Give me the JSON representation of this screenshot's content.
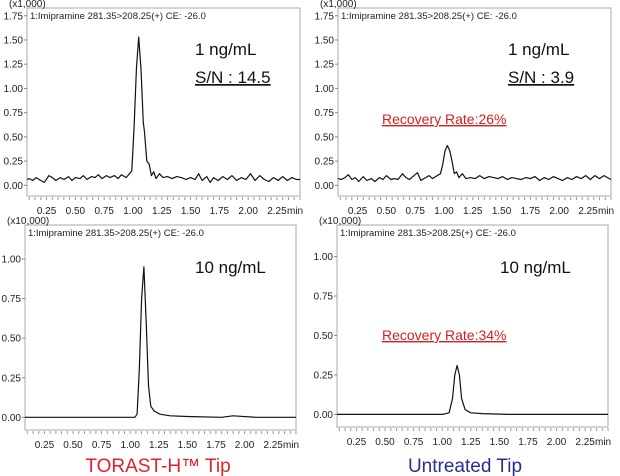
{
  "chart_data": [
    {
      "type": "line",
      "title": "1:Imipramine 281.35>208.25(+) CE: -26.0",
      "y_multiplier": "(x1,000)",
      "xlabel": "min",
      "xticks": [
        "0.25",
        "0.50",
        "0.75",
        "1.00",
        "1.25",
        "1.50",
        "1.75",
        "2.00",
        "2.25"
      ],
      "yticks": [
        "0.00",
        "0.25",
        "0.50",
        "0.75",
        "1.00",
        "1.25",
        "1.50",
        "1.75"
      ],
      "xlim": [
        0.08,
        2.45
      ],
      "ylim": [
        -0.11,
        1.83
      ],
      "annotations": {
        "concentration": "1 ng/mL",
        "sn": "S/N : 14.5"
      },
      "series": [
        {
          "name": "TORAST-H Tip 1 ng/mL",
          "points": [
            [
              0.08,
              0.06
            ],
            [
              0.1,
              0.07
            ],
            [
              0.13,
              0.05
            ],
            [
              0.16,
              0.08
            ],
            [
              0.2,
              0.05
            ],
            [
              0.23,
              0.03
            ],
            [
              0.27,
              0.1
            ],
            [
              0.3,
              0.08
            ],
            [
              0.33,
              0.05
            ],
            [
              0.37,
              0.08
            ],
            [
              0.4,
              0.06
            ],
            [
              0.44,
              0.09
            ],
            [
              0.47,
              0.05
            ],
            [
              0.5,
              0.08
            ],
            [
              0.54,
              0.07
            ],
            [
              0.57,
              0.1
            ],
            [
              0.6,
              0.06
            ],
            [
              0.64,
              0.09
            ],
            [
              0.67,
              0.08
            ],
            [
              0.7,
              0.11
            ],
            [
              0.73,
              0.07
            ],
            [
              0.77,
              0.1
            ],
            [
              0.8,
              0.08
            ],
            [
              0.84,
              0.1
            ],
            [
              0.87,
              0.07
            ],
            [
              0.9,
              0.11
            ],
            [
              0.94,
              0.08
            ],
            [
              0.97,
              0.12
            ],
            [
              0.99,
              0.15
            ],
            [
              1.01,
              0.6
            ],
            [
              1.03,
              1.2
            ],
            [
              1.05,
              1.53
            ],
            [
              1.07,
              1.2
            ],
            [
              1.09,
              0.65
            ],
            [
              1.1,
              0.55
            ],
            [
              1.12,
              0.25
            ],
            [
              1.14,
              0.22
            ],
            [
              1.16,
              0.1
            ],
            [
              1.18,
              0.14
            ],
            [
              1.2,
              0.07
            ],
            [
              1.23,
              0.12
            ],
            [
              1.26,
              0.08
            ],
            [
              1.3,
              0.09
            ],
            [
              1.34,
              0.07
            ],
            [
              1.38,
              0.09
            ],
            [
              1.42,
              0.08
            ],
            [
              1.46,
              0.06
            ],
            [
              1.5,
              0.08
            ],
            [
              1.54,
              0.06
            ],
            [
              1.57,
              0.12
            ],
            [
              1.6,
              0.05
            ],
            [
              1.64,
              0.09
            ],
            [
              1.67,
              0.03
            ],
            [
              1.7,
              0.08
            ],
            [
              1.74,
              0.05
            ],
            [
              1.78,
              0.09
            ],
            [
              1.82,
              0.06
            ],
            [
              1.86,
              0.1
            ],
            [
              1.9,
              0.05
            ],
            [
              1.94,
              0.08
            ],
            [
              1.98,
              0.06
            ],
            [
              2.02,
              0.12
            ],
            [
              2.06,
              0.05
            ],
            [
              2.1,
              0.1
            ],
            [
              2.14,
              0.06
            ],
            [
              2.18,
              0.04
            ],
            [
              2.22,
              0.08
            ],
            [
              2.26,
              0.05
            ],
            [
              2.3,
              0.09
            ],
            [
              2.34,
              0.05
            ],
            [
              2.38,
              0.08
            ],
            [
              2.42,
              0.06
            ],
            [
              2.45,
              0.06
            ]
          ]
        }
      ]
    },
    {
      "type": "line",
      "title": "1:Imipramine 281.35>208.25(+) CE: -26.0",
      "y_multiplier": "(x1,000)",
      "xlabel": "min",
      "xticks": [
        "0.25",
        "0.50",
        "0.75",
        "1.00",
        "1.25",
        "1.50",
        "1.75",
        "2.00",
        "2.25"
      ],
      "yticks": [
        "0.00",
        "0.25",
        "0.50",
        "0.75",
        "1.00",
        "1.25",
        "1.50",
        "1.75"
      ],
      "xlim": [
        0.08,
        2.45
      ],
      "ylim": [
        -0.11,
        1.83
      ],
      "annotations": {
        "concentration": "1 ng/mL",
        "sn": "S/N : 3.9",
        "recovery": "Recovery Rate:26%"
      },
      "series": [
        {
          "name": "Untreated Tip 1 ng/mL",
          "points": [
            [
              0.08,
              0.07
            ],
            [
              0.11,
              0.06
            ],
            [
              0.14,
              0.08
            ],
            [
              0.17,
              0.11
            ],
            [
              0.2,
              0.06
            ],
            [
              0.23,
              0.08
            ],
            [
              0.26,
              0.04
            ],
            [
              0.3,
              0.09
            ],
            [
              0.33,
              0.05
            ],
            [
              0.37,
              0.07
            ],
            [
              0.4,
              0.04
            ],
            [
              0.44,
              0.08
            ],
            [
              0.47,
              0.06
            ],
            [
              0.5,
              0.1
            ],
            [
              0.54,
              0.06
            ],
            [
              0.57,
              0.07
            ],
            [
              0.6,
              0.06
            ],
            [
              0.64,
              0.12
            ],
            [
              0.67,
              0.08
            ],
            [
              0.7,
              0.06
            ],
            [
              0.74,
              0.1
            ],
            [
              0.77,
              0.13
            ],
            [
              0.8,
              0.05
            ],
            [
              0.84,
              0.08
            ],
            [
              0.87,
              0.1
            ],
            [
              0.9,
              0.07
            ],
            [
              0.94,
              0.1
            ],
            [
              0.97,
              0.12
            ],
            [
              0.99,
              0.22
            ],
            [
              1.01,
              0.36
            ],
            [
              1.03,
              0.41
            ],
            [
              1.05,
              0.36
            ],
            [
              1.07,
              0.25
            ],
            [
              1.09,
              0.12
            ],
            [
              1.11,
              0.14
            ],
            [
              1.13,
              0.08
            ],
            [
              1.16,
              0.12
            ],
            [
              1.19,
              0.07
            ],
            [
              1.23,
              0.08
            ],
            [
              1.27,
              0.07
            ],
            [
              1.31,
              0.1
            ],
            [
              1.35,
              0.07
            ],
            [
              1.39,
              0.09
            ],
            [
              1.43,
              0.08
            ],
            [
              1.47,
              0.07
            ],
            [
              1.51,
              0.09
            ],
            [
              1.55,
              0.06
            ],
            [
              1.59,
              0.08
            ],
            [
              1.63,
              0.07
            ],
            [
              1.67,
              0.06
            ],
            [
              1.71,
              0.08
            ],
            [
              1.75,
              0.07
            ],
            [
              1.79,
              0.09
            ],
            [
              1.83,
              0.05
            ],
            [
              1.87,
              0.08
            ],
            [
              1.91,
              0.06
            ],
            [
              1.95,
              0.09
            ],
            [
              1.99,
              0.07
            ],
            [
              2.03,
              0.05
            ],
            [
              2.07,
              0.08
            ],
            [
              2.11,
              0.06
            ],
            [
              2.15,
              0.09
            ],
            [
              2.19,
              0.07
            ],
            [
              2.23,
              0.1
            ],
            [
              2.27,
              0.06
            ],
            [
              2.31,
              0.1
            ],
            [
              2.35,
              0.07
            ],
            [
              2.39,
              0.1
            ],
            [
              2.42,
              0.08
            ],
            [
              2.45,
              0.06
            ]
          ]
        }
      ]
    },
    {
      "type": "line",
      "title": "1:Imipramine 281.35>208.25(+) CE: -26.0",
      "y_multiplier": "(x10,000)",
      "xlabel": "min",
      "xticks": [
        "0.25",
        "0.50",
        "0.75",
        "1.00",
        "1.25",
        "1.50",
        "1.75",
        "2.00",
        "2.25"
      ],
      "yticks": [
        "0.00",
        "0.25",
        "0.50",
        "0.75",
        "1.00"
      ],
      "xlim": [
        0.08,
        2.45
      ],
      "ylim": [
        -0.08,
        1.215
      ],
      "annotations": {
        "concentration": "10 ng/mL"
      },
      "caption": "TORAST-H™ Tip",
      "series": [
        {
          "name": "TORAST-H Tip 10 ng/mL",
          "points": [
            [
              0.08,
              0.0
            ],
            [
              0.3,
              0.0
            ],
            [
              0.6,
              0.0
            ],
            [
              0.9,
              0.0
            ],
            [
              1.04,
              0.0
            ],
            [
              1.06,
              0.02
            ],
            [
              1.08,
              0.3
            ],
            [
              1.1,
              0.75
            ],
            [
              1.12,
              0.95
            ],
            [
              1.14,
              0.6
            ],
            [
              1.16,
              0.2
            ],
            [
              1.18,
              0.07
            ],
            [
              1.21,
              0.04
            ],
            [
              1.26,
              0.02
            ],
            [
              1.35,
              0.01
            ],
            [
              1.5,
              0.005
            ],
            [
              1.8,
              0.0
            ],
            [
              1.9,
              0.01
            ],
            [
              2.1,
              0.0
            ],
            [
              2.45,
              0.0
            ]
          ]
        }
      ]
    },
    {
      "type": "line",
      "title": "1:Imipramine 281.35>208.25(+) CE: -26.0",
      "y_multiplier": "(x10,000)",
      "xlabel": "min",
      "xticks": [
        "0.25",
        "0.50",
        "0.75",
        "1.00",
        "1.25",
        "1.50",
        "1.75",
        "2.00",
        "2.25"
      ],
      "yticks": [
        "0.00",
        "0.25",
        "0.50",
        "0.75",
        "1.00"
      ],
      "xlim": [
        0.08,
        2.45
      ],
      "ylim": [
        -0.08,
        1.2
      ],
      "annotations": {
        "concentration": "10 ng/mL",
        "recovery": "Recovery Rate:34%"
      },
      "caption": "Untreated Tip",
      "series": [
        {
          "name": "Untreated Tip 10 ng/mL",
          "points": [
            [
              0.08,
              0.0
            ],
            [
              0.4,
              0.0
            ],
            [
              0.8,
              0.0
            ],
            [
              1.0,
              0.0
            ],
            [
              1.06,
              0.01
            ],
            [
              1.09,
              0.1
            ],
            [
              1.11,
              0.25
            ],
            [
              1.13,
              0.31
            ],
            [
              1.15,
              0.25
            ],
            [
              1.17,
              0.1
            ],
            [
              1.2,
              0.03
            ],
            [
              1.25,
              0.01
            ],
            [
              1.35,
              0.005
            ],
            [
              1.6,
              0.0
            ],
            [
              2.0,
              0.0
            ],
            [
              2.45,
              0.0
            ]
          ]
        }
      ]
    }
  ],
  "colors": {
    "trace": "#111111",
    "recovery": "#d42020",
    "caption_torast": "#e0202a",
    "caption_untreated": "#2b2f8f"
  }
}
